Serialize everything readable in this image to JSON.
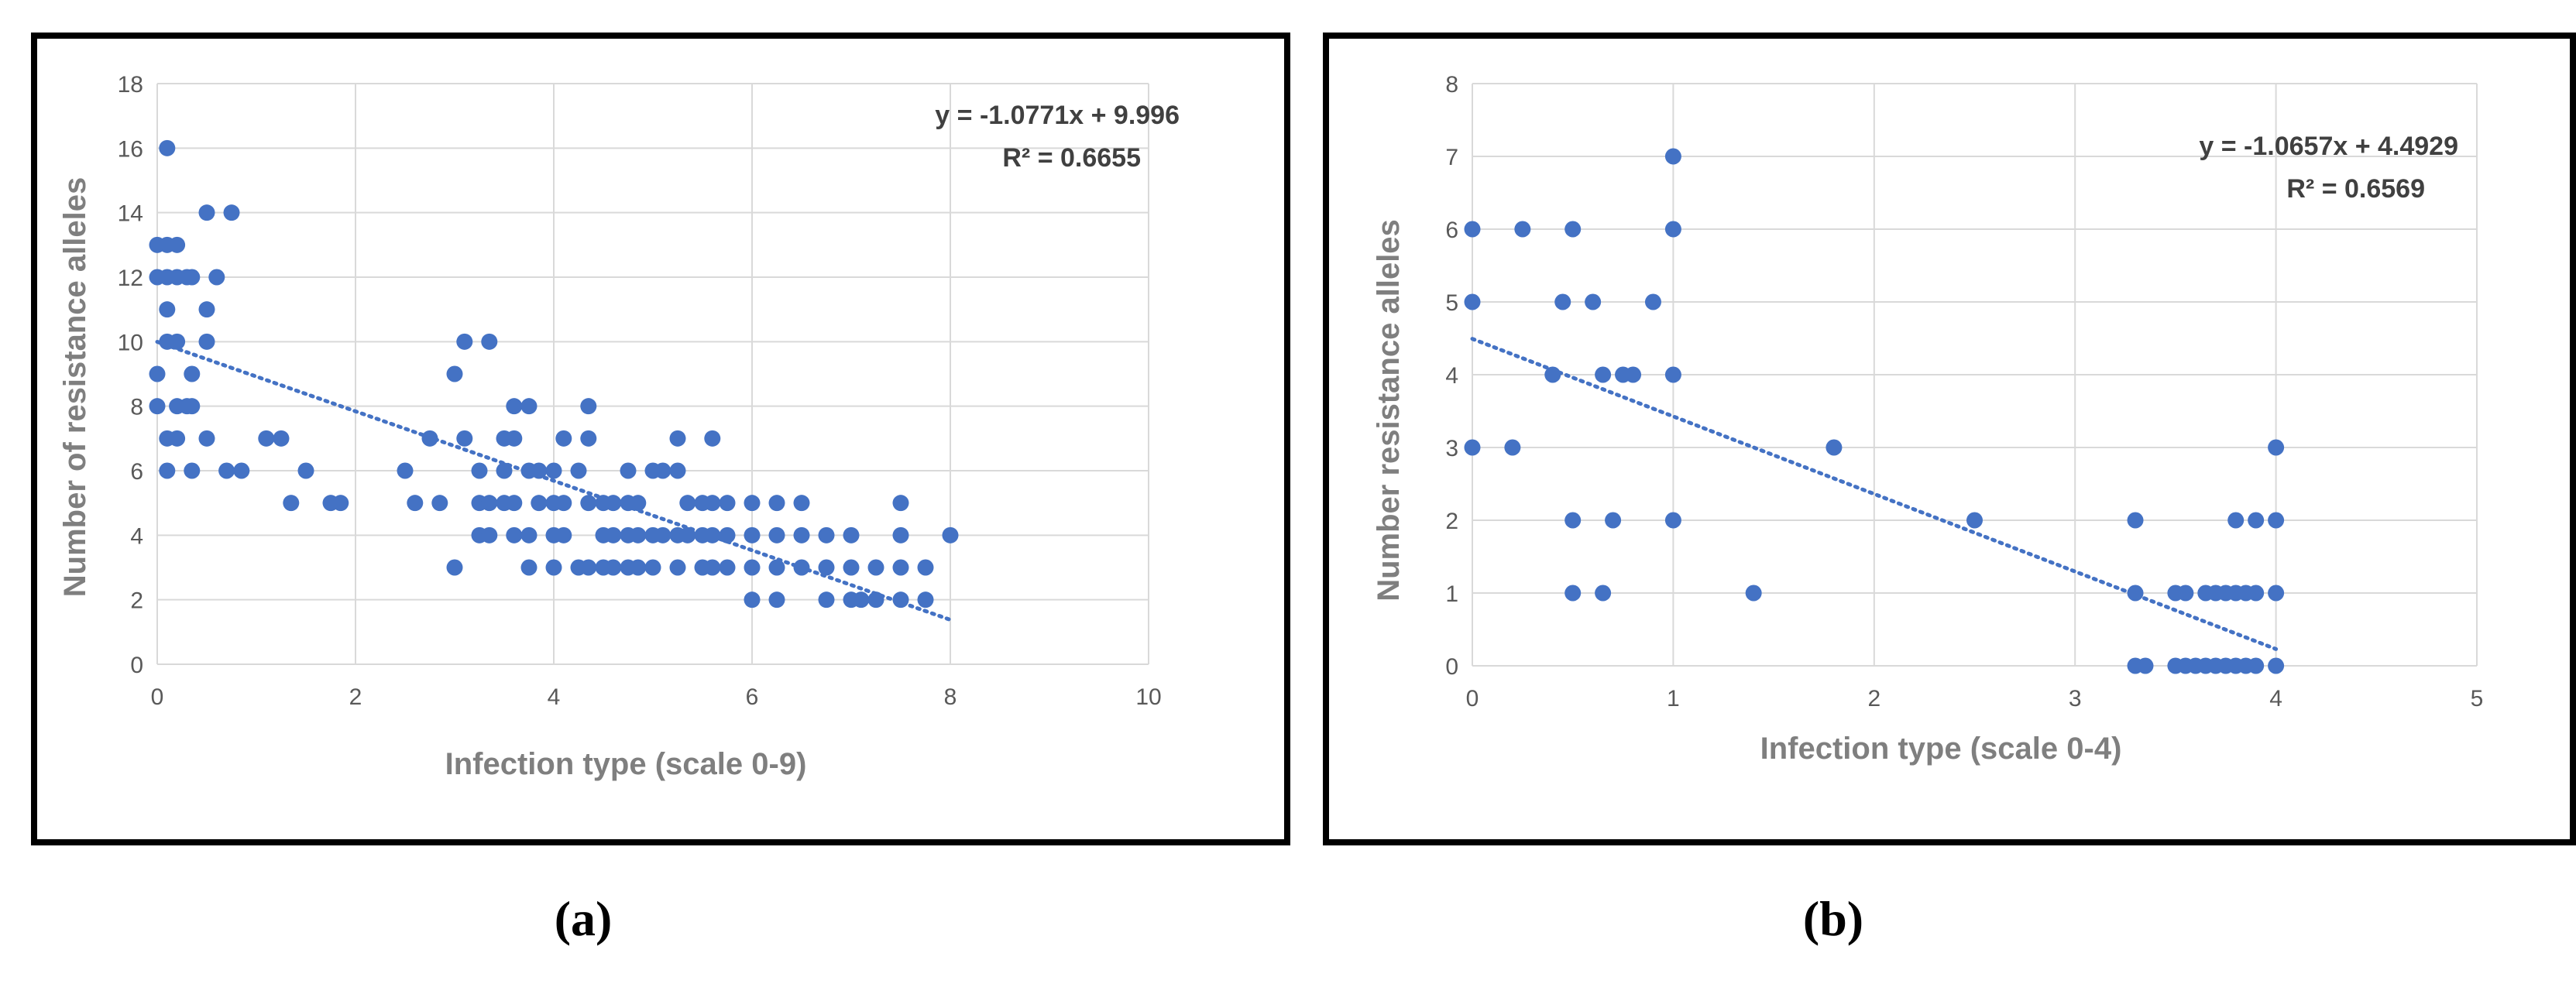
{
  "colors": {
    "point": "#4472C4",
    "trend": "#4472C4",
    "grid": "#D9D9D9",
    "tick_text": "#595959",
    "label_text": "#7F7F7F",
    "equation_text": "#404040"
  },
  "captions": {
    "a": "(a)",
    "b": "(b)"
  },
  "chart_data": [
    {
      "type": "scatter",
      "panel": "a",
      "title": "",
      "xlabel": "Infection type (scale 0-9)",
      "ylabel": "Number of resistance alleles",
      "xlim": [
        0,
        10
      ],
      "ylim": [
        0,
        18
      ],
      "xticks": [
        0,
        2,
        4,
        6,
        8,
        10
      ],
      "yticks": [
        0,
        2,
        4,
        6,
        8,
        10,
        12,
        14,
        16,
        18
      ],
      "grid": true,
      "trendline": {
        "type": "linear",
        "slope": -1.0771,
        "intercept": 9.996,
        "x_range": [
          0,
          8
        ]
      },
      "equation_line1": "y = -1.0771x + 9.996",
      "equation_line2": "R² = 0.6655",
      "points": [
        [
          0,
          13
        ],
        [
          0,
          12
        ],
        [
          0,
          9
        ],
        [
          0,
          8
        ],
        [
          0.1,
          16
        ],
        [
          0.1,
          13
        ],
        [
          0.1,
          12
        ],
        [
          0.1,
          11
        ],
        [
          0.1,
          10
        ],
        [
          0.1,
          7
        ],
        [
          0.1,
          6
        ],
        [
          0.2,
          13
        ],
        [
          0.2,
          12
        ],
        [
          0.2,
          10
        ],
        [
          0.2,
          8
        ],
        [
          0.2,
          7
        ],
        [
          0.3,
          12
        ],
        [
          0.3,
          8
        ],
        [
          0.35,
          12
        ],
        [
          0.35,
          9
        ],
        [
          0.35,
          8
        ],
        [
          0.35,
          6
        ],
        [
          0.5,
          14
        ],
        [
          0.5,
          11
        ],
        [
          0.5,
          10
        ],
        [
          0.5,
          7
        ],
        [
          0.6,
          12
        ],
        [
          0.7,
          6
        ],
        [
          0.75,
          14
        ],
        [
          0.85,
          6
        ],
        [
          1.1,
          7
        ],
        [
          1.25,
          7
        ],
        [
          1.35,
          5
        ],
        [
          1.5,
          6
        ],
        [
          1.75,
          5
        ],
        [
          1.85,
          5
        ],
        [
          2.5,
          6
        ],
        [
          2.6,
          5
        ],
        [
          2.75,
          7
        ],
        [
          2.85,
          5
        ],
        [
          3,
          9
        ],
        [
          3,
          3
        ],
        [
          3.1,
          10
        ],
        [
          3.1,
          7
        ],
        [
          3.25,
          6
        ],
        [
          3.25,
          5
        ],
        [
          3.25,
          4
        ],
        [
          3.35,
          10
        ],
        [
          3.35,
          5
        ],
        [
          3.35,
          4
        ],
        [
          3.5,
          7
        ],
        [
          3.5,
          6
        ],
        [
          3.5,
          5
        ],
        [
          3.6,
          8
        ],
        [
          3.6,
          7
        ],
        [
          3.6,
          5
        ],
        [
          3.6,
          4
        ],
        [
          3.75,
          8
        ],
        [
          3.75,
          6
        ],
        [
          3.75,
          4
        ],
        [
          3.75,
          3
        ],
        [
          3.85,
          6
        ],
        [
          3.85,
          5
        ],
        [
          4,
          6
        ],
        [
          4,
          5
        ],
        [
          4,
          4
        ],
        [
          4,
          3
        ],
        [
          4.1,
          7
        ],
        [
          4.1,
          5
        ],
        [
          4.1,
          4
        ],
        [
          4.25,
          6
        ],
        [
          4.25,
          3
        ],
        [
          4.35,
          8
        ],
        [
          4.35,
          7
        ],
        [
          4.35,
          5
        ],
        [
          4.35,
          3
        ],
        [
          4.5,
          5
        ],
        [
          4.5,
          4
        ],
        [
          4.5,
          3
        ],
        [
          4.6,
          5
        ],
        [
          4.6,
          4
        ],
        [
          4.6,
          3
        ],
        [
          4.75,
          6
        ],
        [
          4.75,
          5
        ],
        [
          4.75,
          4
        ],
        [
          4.75,
          3
        ],
        [
          4.85,
          5
        ],
        [
          4.85,
          4
        ],
        [
          4.85,
          3
        ],
        [
          5,
          6
        ],
        [
          5,
          4
        ],
        [
          5,
          3
        ],
        [
          5.1,
          6
        ],
        [
          5.1,
          4
        ],
        [
          5.25,
          7
        ],
        [
          5.25,
          6
        ],
        [
          5.25,
          4
        ],
        [
          5.25,
          3
        ],
        [
          5.35,
          5
        ],
        [
          5.35,
          4
        ],
        [
          5.5,
          5
        ],
        [
          5.5,
          4
        ],
        [
          5.5,
          3
        ],
        [
          5.6,
          7
        ],
        [
          5.6,
          5
        ],
        [
          5.6,
          4
        ],
        [
          5.6,
          3
        ],
        [
          5.75,
          5
        ],
        [
          5.75,
          4
        ],
        [
          5.75,
          3
        ],
        [
          6,
          5
        ],
        [
          6,
          4
        ],
        [
          6,
          3
        ],
        [
          6,
          2
        ],
        [
          6.25,
          5
        ],
        [
          6.25,
          4
        ],
        [
          6.25,
          3
        ],
        [
          6.25,
          2
        ],
        [
          6.5,
          5
        ],
        [
          6.5,
          4
        ],
        [
          6.5,
          3
        ],
        [
          6.75,
          4
        ],
        [
          6.75,
          3
        ],
        [
          6.75,
          2
        ],
        [
          7,
          4
        ],
        [
          7,
          3
        ],
        [
          7,
          2
        ],
        [
          7.1,
          2
        ],
        [
          7.25,
          3
        ],
        [
          7.25,
          2
        ],
        [
          7.5,
          5
        ],
        [
          7.5,
          4
        ],
        [
          7.5,
          3
        ],
        [
          7.5,
          2
        ],
        [
          7.75,
          3
        ],
        [
          7.75,
          2
        ],
        [
          8,
          4
        ]
      ]
    },
    {
      "type": "scatter",
      "panel": "b",
      "title": "",
      "xlabel": "Infection type (scale 0-4)",
      "ylabel": "Number resistance alleles",
      "xlim": [
        0,
        5
      ],
      "ylim": [
        0,
        8
      ],
      "xticks": [
        0,
        1,
        2,
        3,
        4,
        5
      ],
      "yticks": [
        0,
        1,
        2,
        3,
        4,
        5,
        6,
        7,
        8
      ],
      "grid": true,
      "trendline": {
        "type": "linear",
        "slope": -1.0657,
        "intercept": 4.4929,
        "x_range": [
          0,
          4
        ]
      },
      "equation_line1": "y = -1.0657x + 4.4929",
      "equation_line2": "R² = 0.6569",
      "points": [
        [
          0,
          6
        ],
        [
          0,
          5
        ],
        [
          0,
          3
        ],
        [
          0.2,
          3
        ],
        [
          0.25,
          6
        ],
        [
          0.4,
          4
        ],
        [
          0.45,
          5
        ],
        [
          0.5,
          6
        ],
        [
          0.5,
          2
        ],
        [
          0.5,
          1
        ],
        [
          0.6,
          5
        ],
        [
          0.65,
          4
        ],
        [
          0.65,
          1
        ],
        [
          0.7,
          2
        ],
        [
          0.75,
          4
        ],
        [
          0.8,
          4
        ],
        [
          0.9,
          5
        ],
        [
          1,
          7
        ],
        [
          1,
          6
        ],
        [
          1,
          4
        ],
        [
          1,
          2
        ],
        [
          1.4,
          1
        ],
        [
          1.8,
          3
        ],
        [
          2.5,
          2
        ],
        [
          3.3,
          2
        ],
        [
          3.3,
          1
        ],
        [
          3.3,
          0
        ],
        [
          3.35,
          0
        ],
        [
          3.5,
          1
        ],
        [
          3.5,
          0
        ],
        [
          3.55,
          1
        ],
        [
          3.55,
          0
        ],
        [
          3.6,
          0
        ],
        [
          3.65,
          1
        ],
        [
          3.65,
          0
        ],
        [
          3.7,
          1
        ],
        [
          3.7,
          0
        ],
        [
          3.75,
          1
        ],
        [
          3.75,
          0
        ],
        [
          3.8,
          2
        ],
        [
          3.8,
          1
        ],
        [
          3.8,
          0
        ],
        [
          3.85,
          1
        ],
        [
          3.85,
          0
        ],
        [
          3.9,
          2
        ],
        [
          3.9,
          1
        ],
        [
          3.9,
          0
        ],
        [
          4,
          3
        ],
        [
          4,
          2
        ],
        [
          4,
          1
        ],
        [
          4,
          0
        ]
      ]
    }
  ]
}
